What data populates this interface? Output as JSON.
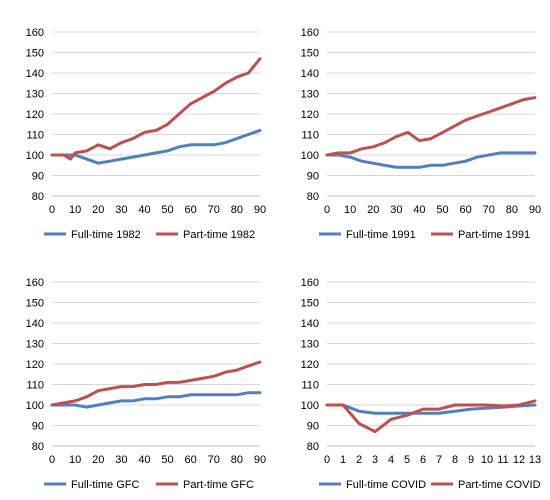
{
  "colors": {
    "full_time": "#4f81bd",
    "part_time": "#c0504d"
  },
  "chart_data": [
    {
      "type": "line",
      "xlim": [
        0,
        90
      ],
      "ylim": [
        80,
        160
      ],
      "x_ticks": [
        0,
        10,
        20,
        30,
        40,
        50,
        60,
        70,
        80,
        90
      ],
      "y_ticks": [
        80,
        90,
        100,
        110,
        120,
        130,
        140,
        150,
        160
      ],
      "legend_position": "bottom",
      "series": [
        {
          "name": "Full-time 1982",
          "color": "#4f81bd",
          "x": [
            0,
            5,
            10,
            15,
            20,
            25,
            30,
            35,
            40,
            45,
            50,
            55,
            60,
            65,
            70,
            75,
            80,
            85,
            90
          ],
          "values": [
            100,
            100,
            100,
            98,
            96,
            97,
            98,
            99,
            100,
            101,
            102,
            104,
            105,
            105,
            105,
            106,
            108,
            110,
            112
          ]
        },
        {
          "name": "Part-time 1982",
          "color": "#c0504d",
          "x": [
            0,
            5,
            8,
            10,
            15,
            20,
            25,
            30,
            35,
            40,
            45,
            50,
            55,
            60,
            65,
            70,
            75,
            80,
            85,
            90
          ],
          "values": [
            100,
            100,
            98,
            101,
            102,
            105,
            103,
            106,
            108,
            111,
            112,
            115,
            120,
            125,
            128,
            131,
            135,
            138,
            140,
            147
          ]
        }
      ]
    },
    {
      "type": "line",
      "xlim": [
        0,
        90
      ],
      "ylim": [
        80,
        160
      ],
      "x_ticks": [
        0,
        10,
        20,
        30,
        40,
        50,
        60,
        70,
        80,
        90
      ],
      "y_ticks": [
        80,
        90,
        100,
        110,
        120,
        130,
        140,
        150,
        160
      ],
      "legend_position": "bottom",
      "series": [
        {
          "name": "Full-time 1991",
          "color": "#4f81bd",
          "x": [
            0,
            5,
            10,
            15,
            20,
            25,
            30,
            35,
            40,
            45,
            50,
            55,
            60,
            65,
            70,
            75,
            80,
            85,
            90
          ],
          "values": [
            100,
            100,
            99,
            97,
            96,
            95,
            94,
            94,
            94,
            95,
            95,
            96,
            97,
            99,
            100,
            101,
            101,
            101,
            101
          ]
        },
        {
          "name": "Part-time 1991",
          "color": "#c0504d",
          "x": [
            0,
            5,
            10,
            15,
            20,
            25,
            30,
            35,
            40,
            45,
            50,
            55,
            60,
            65,
            70,
            75,
            80,
            85,
            90
          ],
          "values": [
            100,
            101,
            101,
            103,
            104,
            106,
            109,
            111,
            107,
            108,
            111,
            114,
            117,
            119,
            121,
            123,
            125,
            127,
            128
          ]
        }
      ]
    },
    {
      "type": "line",
      "xlim": [
        0,
        90
      ],
      "ylim": [
        80,
        160
      ],
      "x_ticks": [
        0,
        10,
        20,
        30,
        40,
        50,
        60,
        70,
        80,
        90
      ],
      "y_ticks": [
        80,
        90,
        100,
        110,
        120,
        130,
        140,
        150,
        160
      ],
      "legend_position": "bottom",
      "series": [
        {
          "name": "Full-time GFC",
          "color": "#4f81bd",
          "x": [
            0,
            5,
            10,
            15,
            20,
            25,
            30,
            35,
            40,
            45,
            50,
            55,
            60,
            65,
            70,
            75,
            80,
            85,
            90
          ],
          "values": [
            100,
            100,
            100,
            99,
            100,
            101,
            102,
            102,
            103,
            103,
            104,
            104,
            105,
            105,
            105,
            105,
            105,
            106,
            106
          ]
        },
        {
          "name": "Part-time GFC",
          "color": "#c0504d",
          "x": [
            0,
            5,
            10,
            15,
            20,
            25,
            30,
            35,
            40,
            45,
            50,
            55,
            60,
            65,
            70,
            75,
            80,
            85,
            90
          ],
          "values": [
            100,
            101,
            102,
            104,
            107,
            108,
            109,
            109,
            110,
            110,
            111,
            111,
            112,
            113,
            114,
            116,
            117,
            119,
            121
          ]
        }
      ]
    },
    {
      "type": "line",
      "xlim": [
        0,
        13
      ],
      "ylim": [
        80,
        160
      ],
      "x_ticks": [
        0,
        1,
        2,
        3,
        4,
        5,
        6,
        7,
        8,
        9,
        10,
        11,
        12,
        13
      ],
      "y_ticks": [
        80,
        90,
        100,
        110,
        120,
        130,
        140,
        150,
        160
      ],
      "legend_position": "bottom",
      "series": [
        {
          "name": "Full-time COVID",
          "color": "#4f81bd",
          "x": [
            0,
            1,
            2,
            3,
            4,
            5,
            6,
            7,
            8,
            9,
            10,
            11,
            12,
            13
          ],
          "values": [
            100,
            100,
            97,
            96,
            96,
            96,
            96,
            96,
            97,
            98,
            98.5,
            99,
            99.5,
            100
          ]
        },
        {
          "name": "Part-time COVID",
          "color": "#c0504d",
          "x": [
            0,
            1,
            2,
            3,
            4,
            5,
            6,
            7,
            8,
            9,
            10,
            11,
            12,
            13
          ],
          "values": [
            100,
            100,
            91,
            87,
            93,
            95,
            98,
            98,
            100,
            100,
            100,
            99.5,
            100,
            102
          ]
        }
      ]
    }
  ]
}
